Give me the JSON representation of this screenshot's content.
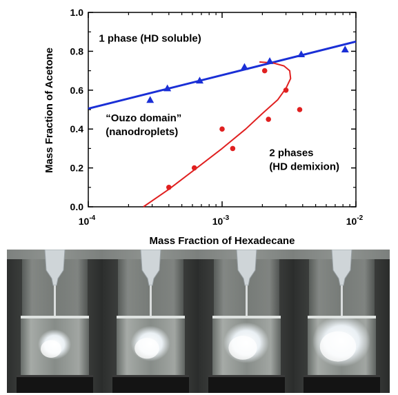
{
  "chart_data": {
    "type": "scatter",
    "xlabel": "Mass Fraction of Hexadecane",
    "ylabel": "Mass Fraction of Acetone",
    "x_scale": "log",
    "xlim": [
      0.0001,
      0.01
    ],
    "ylim": [
      0.0,
      1.0
    ],
    "x_tick_labels": [
      {
        "base": "10",
        "exp": "-4",
        "value": 0.0001
      },
      {
        "base": "10",
        "exp": "-3",
        "value": 0.001
      },
      {
        "base": "10",
        "exp": "-2",
        "value": 0.01
      }
    ],
    "y_ticks": [
      "0.0",
      "0.2",
      "0.4",
      "0.6",
      "0.8",
      "1.0"
    ],
    "grid": false,
    "series": [
      {
        "marker": "triangle",
        "color": "#1a2fd6",
        "points": [
          {
            "x": 0.00029,
            "y": 0.55
          },
          {
            "x": 0.00039,
            "y": 0.61
          },
          {
            "x": 0.00068,
            "y": 0.65
          },
          {
            "x": 0.00147,
            "y": 0.72
          },
          {
            "x": 0.00227,
            "y": 0.75
          },
          {
            "x": 0.0039,
            "y": 0.785
          },
          {
            "x": 0.0083,
            "y": 0.81
          }
        ]
      },
      {
        "marker": "circle",
        "color": "#e02020",
        "points": [
          {
            "x": 0.0004,
            "y": 0.1
          },
          {
            "x": 0.00062,
            "y": 0.2
          },
          {
            "x": 0.001,
            "y": 0.4
          },
          {
            "x": 0.0012,
            "y": 0.3
          },
          {
            "x": 0.00208,
            "y": 0.7
          },
          {
            "x": 0.00222,
            "y": 0.45
          },
          {
            "x": 0.003,
            "y": 0.6
          },
          {
            "x": 0.0038,
            "y": 0.5
          }
        ]
      }
    ],
    "fit_lines": [
      {
        "color": "#1a2fd6",
        "x": [
          0.0001,
          0.01
        ],
        "y": [
          0.505,
          0.85
        ]
      },
      {
        "color": "#e02020",
        "x": [
          0.000258,
          0.0004,
          0.00062,
          0.001,
          0.0015,
          0.002,
          0.0026,
          0.003,
          0.00325,
          0.0032,
          0.0029,
          0.0024,
          0.0019
        ],
        "y": [
          0.0,
          0.09,
          0.19,
          0.3,
          0.4,
          0.48,
          0.55,
          0.61,
          0.66,
          0.7,
          0.725,
          0.74,
          0.745
        ]
      }
    ],
    "annotations": [
      {
        "lines": [
          "1 phase (HD soluble)"
        ],
        "x": 0.00012,
        "y": 0.85
      },
      {
        "lines": [
          "“Ouzo domain”",
          "(nanodroplets)"
        ],
        "x": 0.000135,
        "y": 0.44
      },
      {
        "lines": [
          "2 phases",
          "(HD demixion)"
        ],
        "x": 0.00225,
        "y": 0.26
      }
    ]
  },
  "photos": [
    {
      "label": "",
      "cloud_level": 0.3
    },
    {
      "label": "",
      "cloud_level": 0.45
    },
    {
      "label": "",
      "cloud_level": 0.6
    },
    {
      "label": "",
      "cloud_level": 0.9
    }
  ]
}
